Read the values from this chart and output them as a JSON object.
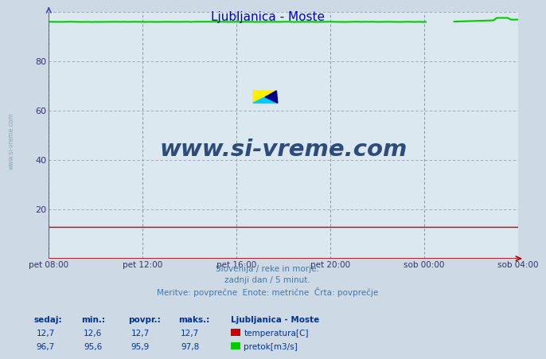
{
  "title": "Ljubljanica - Moste",
  "title_color": "#0000cc",
  "bg_color": "#cdd9e5",
  "plot_bg_color": "#dce8f0",
  "grid_color_v": "#cc6666",
  "grid_color_h": "#9999cc",
  "axis_color_x": "#aa0000",
  "axis_color_y": "#4444aa",
  "tick_color": "#333366",
  "xlabels": [
    "pet 08:00",
    "pet 12:00",
    "pet 16:00",
    "pet 20:00",
    "sob 00:00",
    "sob 04:00"
  ],
  "xtick_positions": [
    0,
    24,
    48,
    72,
    96,
    120
  ],
  "ylim": [
    0,
    100
  ],
  "yticks": [
    20,
    40,
    60,
    80
  ],
  "temp_value": 12.7,
  "temp_color": "#cc0000",
  "flow_value_base": 95.9,
  "flow_color": "#00cc00",
  "subtitle_lines": [
    "Slovenija / reke in morje.",
    "zadnji dan / 5 minut.",
    "Meritve: povprečne  Enote: metrične  Črta: povprečje"
  ],
  "subtitle_color": "#4477aa",
  "table_header_color": "#003399",
  "table_value_color": "#003399",
  "watermark_text": "www.si-vreme.com",
  "watermark_color": "#1a3a6e",
  "sedaj_temp": "12,7",
  "min_temp": "12,6",
  "povpr_temp": "12,7",
  "maks_temp": "12,7",
  "sedaj_flow": "96,7",
  "min_flow": "95,6",
  "povpr_flow": "95,9",
  "maks_flow": "97,8",
  "legend_title": "Ljubljanica - Moste",
  "legend_temp_label": "temperatura[C]",
  "legend_flow_label": "pretok[m3/s]",
  "side_watermark": "www.si-vreme.com"
}
